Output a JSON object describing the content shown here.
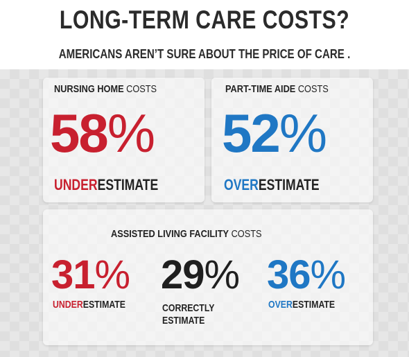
{
  "title": "LONG-TERM CARE COSTS?",
  "subtitle": "AMERICANS AREN’T SURE ABOUT THE PRICE OF CARE .",
  "colors": {
    "red": "#c8202f",
    "blue": "#1f77c4",
    "dark": "#1f1f1f"
  },
  "nursing": {
    "heading_bold": "NURSING HOME",
    "heading_light": " COSTS",
    "percent": "58",
    "percent_sign": "%",
    "label_colored": "UNDER",
    "label_rest": "ESTIMATE"
  },
  "aide": {
    "heading_bold": "PART-TIME AIDE",
    "heading_light": " COSTS",
    "percent": "52",
    "percent_sign": "%",
    "label_colored": "OVER",
    "label_rest": "ESTIMATE"
  },
  "assisted": {
    "heading_bold": "ASSISTED LIVING FACILITY",
    "heading_light": " COSTS",
    "under": {
      "percent": "31",
      "percent_sign": "%",
      "label_colored": "UNDER",
      "label_rest": "ESTIMATE"
    },
    "correct": {
      "percent": "29",
      "percent_sign": "%",
      "label_line1": "CORRECTLY",
      "label_line2": "ESTIMATE"
    },
    "over": {
      "percent": "36",
      "percent_sign": "%",
      "label_colored": "OVER",
      "label_rest": "ESTIMATE"
    }
  }
}
